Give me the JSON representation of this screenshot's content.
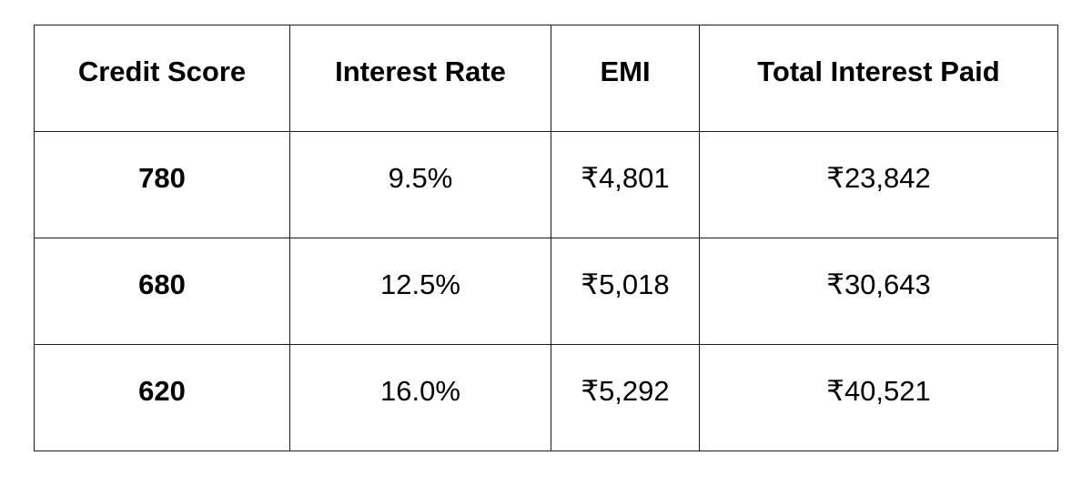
{
  "table": {
    "headers": [
      "Credit Score",
      "Interest Rate",
      "EMI",
      "Total Interest Paid"
    ],
    "rows": [
      [
        "780",
        "9.5%",
        "₹4,801",
        "₹23,842"
      ],
      [
        "680",
        "12.5%",
        "₹5,018",
        "₹30,643"
      ],
      [
        "620",
        "16.0%",
        "₹5,292",
        "₹40,521"
      ]
    ]
  }
}
